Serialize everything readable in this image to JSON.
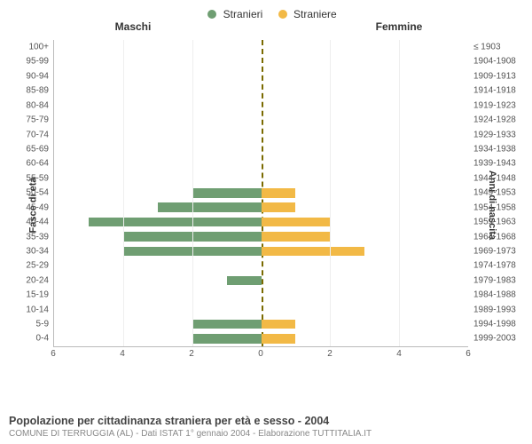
{
  "legend": {
    "male": {
      "label": "Stranieri",
      "color": "#6f9e72"
    },
    "female": {
      "label": "Straniere",
      "color": "#f2b946"
    }
  },
  "headers": {
    "male": "Maschi",
    "female": "Femmine"
  },
  "axis_titles": {
    "left": "Fasce di età",
    "right": "Anni di nascita"
  },
  "xaxis": {
    "max": 6,
    "ticks": [
      6,
      4,
      2,
      0,
      2,
      4,
      6
    ]
  },
  "center_line_color": "#7a6a00",
  "background_color": "#ffffff",
  "rows": [
    {
      "age": "100+",
      "birth": "≤ 1903",
      "m": 0,
      "f": 0
    },
    {
      "age": "95-99",
      "birth": "1904-1908",
      "m": 0,
      "f": 0
    },
    {
      "age": "90-94",
      "birth": "1909-1913",
      "m": 0,
      "f": 0
    },
    {
      "age": "85-89",
      "birth": "1914-1918",
      "m": 0,
      "f": 0
    },
    {
      "age": "80-84",
      "birth": "1919-1923",
      "m": 0,
      "f": 0
    },
    {
      "age": "75-79",
      "birth": "1924-1928",
      "m": 0,
      "f": 0
    },
    {
      "age": "70-74",
      "birth": "1929-1933",
      "m": 0,
      "f": 0
    },
    {
      "age": "65-69",
      "birth": "1934-1938",
      "m": 0,
      "f": 0
    },
    {
      "age": "60-64",
      "birth": "1939-1943",
      "m": 0,
      "f": 0
    },
    {
      "age": "55-59",
      "birth": "1944-1948",
      "m": 0,
      "f": 0
    },
    {
      "age": "50-54",
      "birth": "1949-1953",
      "m": 2,
      "f": 1
    },
    {
      "age": "45-49",
      "birth": "1954-1958",
      "m": 3,
      "f": 1
    },
    {
      "age": "40-44",
      "birth": "1959-1963",
      "m": 5,
      "f": 2
    },
    {
      "age": "35-39",
      "birth": "1964-1968",
      "m": 4,
      "f": 2
    },
    {
      "age": "30-34",
      "birth": "1969-1973",
      "m": 4,
      "f": 3
    },
    {
      "age": "25-29",
      "birth": "1974-1978",
      "m": 0,
      "f": 0
    },
    {
      "age": "20-24",
      "birth": "1979-1983",
      "m": 1,
      "f": 0
    },
    {
      "age": "15-19",
      "birth": "1984-1988",
      "m": 0,
      "f": 0
    },
    {
      "age": "10-14",
      "birth": "1989-1993",
      "m": 0,
      "f": 0
    },
    {
      "age": "5-9",
      "birth": "1994-1998",
      "m": 2,
      "f": 1
    },
    {
      "age": "0-4",
      "birth": "1999-2003",
      "m": 2,
      "f": 1
    }
  ],
  "caption": {
    "title": "Popolazione per cittadinanza straniera per età e sesso - 2004",
    "sub": "COMUNE DI TERRUGGIA (AL) - Dati ISTAT 1° gennaio 2004 - Elaborazione TUTTITALIA.IT"
  },
  "font_sizes": {
    "legend": 12,
    "header": 12,
    "axis_title": 11,
    "tick": 10,
    "caption_title": 12.5,
    "caption_sub": 10
  }
}
